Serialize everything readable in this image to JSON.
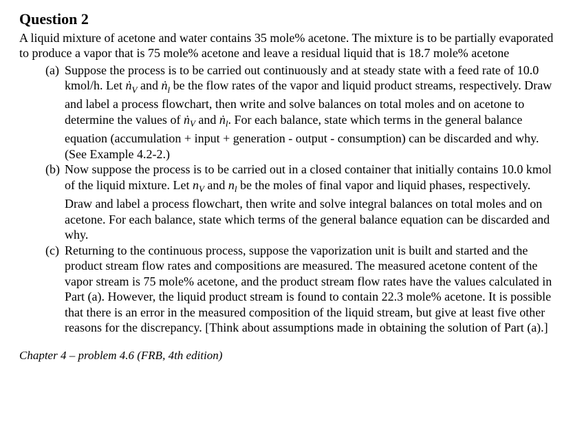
{
  "title": "Question 2",
  "intro": "A liquid mixture of acetone and water contains 35 mole% acetone. The mixture is to be partially evaporated to produce a vapor that is 75 mole% acetone and leave a residual liquid that is 18.7 mole% acetone",
  "parts": {
    "a": {
      "marker": "(a)",
      "seg1": "Suppose the process is to be carried out continuously and at steady state with a feed rate of 10.0 kmol/h. Let ",
      "var_nv": "ṅ",
      "sub_v": "V",
      "seg2": " and ",
      "var_nl": "ṅ",
      "sub_l": "l",
      "seg3": " be the flow rates of the vapor and liquid product streams, respectively. Draw and label a process flowchart, then write and solve balances on total moles and on acetone to determine the values of ",
      "seg4": ". For each balance, state which terms in the general balance equation (accumulation + input + generation - output - consumption) can be discarded and why. (See Example 4.2-2.)"
    },
    "b": {
      "marker": "(b)",
      "seg1": "Now suppose the process is to be carried out in a closed container that initially contains 10.0 kmol of the liquid mixture. Let ",
      "var_nv": "n",
      "sub_v": "V",
      "seg2": " and ",
      "var_nl": "n",
      "sub_l": "l",
      "seg3": " be the moles of final vapor and liquid phases, respectively. Draw and label a process flowchart, then write and solve integral balances on total moles and on acetone. For each balance, state which terms of the general balance equation can be discarded and why."
    },
    "c": {
      "marker": "(c)",
      "text": "Returning to the continuous process, suppose the vaporization unit is built and started and the product stream flow rates and compositions are measured. The measured acetone content of the vapor stream is 75 mole% acetone, and the product stream flow rates have the values calculated in Part (a). However, the liquid product stream is found to contain 22.3 mole% acetone. It is possible that there is an error in the measured composition of the liquid stream, but give at least five other reasons for the discrepancy. [Think about assumptions made in obtaining the solution of Part (a).]"
    }
  },
  "footer": "Chapter 4 – problem 4.6 (FRB, 4th edition)"
}
